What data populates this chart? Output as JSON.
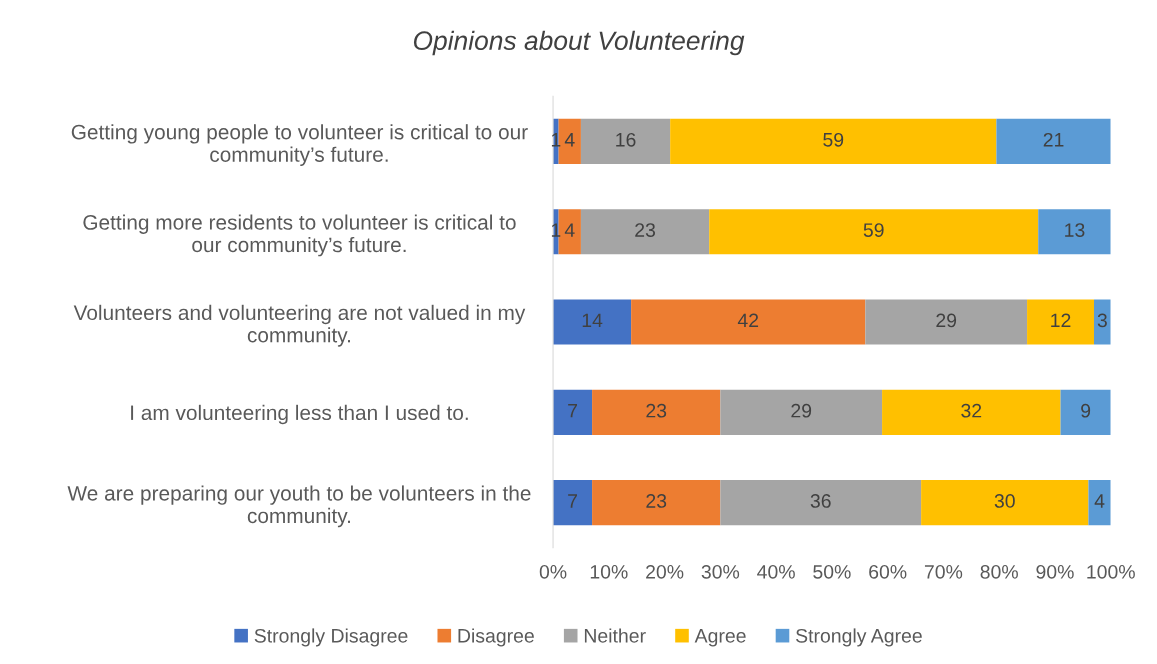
{
  "chart_data": {
    "type": "bar",
    "orientation": "horizontal",
    "stacked": true,
    "title": "Opinions about Volunteering",
    "categories": [
      "Getting young people to volunteer is critical to our community’s future.",
      "Getting more residents to volunteer is critical to our community’s future.",
      "Volunteers and volunteering are not valued in my community.",
      "I am volunteering less than I used to.",
      "We are preparing our youth to be volunteers in the community."
    ],
    "series": [
      {
        "name": "Strongly Disagree",
        "color": "#4472c4",
        "values": [
          1,
          1,
          14,
          7,
          7
        ],
        "value_labels": [
          "1",
          "1",
          "14",
          "7",
          "7"
        ]
      },
      {
        "name": "Disagree",
        "color": "#ed7d31",
        "values": [
          4,
          4,
          42,
          23,
          23
        ],
        "value_labels": [
          "4",
          "4",
          "42",
          "23",
          "23"
        ]
      },
      {
        "name": "Neither",
        "color": "#a5a5a5",
        "values": [
          16,
          23,
          29,
          29,
          36
        ],
        "value_labels": [
          "16",
          "23",
          "29",
          "29",
          "36"
        ]
      },
      {
        "name": "Agree",
        "color": "#ffc000",
        "values": [
          58.5,
          59,
          12,
          32,
          30
        ],
        "value_labels": [
          "59",
          "59",
          "12",
          "32",
          "30"
        ]
      },
      {
        "name": "Strongly Agree",
        "color": "#5b9bd5",
        "values": [
          20.5,
          13,
          3,
          9,
          4
        ],
        "value_labels": [
          "21",
          "13",
          "3",
          "9",
          "4"
        ]
      }
    ],
    "xlim": [
      0,
      100
    ],
    "xticks": [
      {
        "value": 0,
        "label": "0%"
      },
      {
        "value": 10,
        "label": "10%"
      },
      {
        "value": 20,
        "label": "20%"
      },
      {
        "value": 30,
        "label": "30%"
      },
      {
        "value": 40,
        "label": "40%"
      },
      {
        "value": 50,
        "label": "50%"
      },
      {
        "value": 60,
        "label": "60%"
      },
      {
        "value": 70,
        "label": "70%"
      },
      {
        "value": 80,
        "label": "80%"
      },
      {
        "value": 90,
        "label": "90%"
      },
      {
        "value": 100,
        "label": "100%"
      }
    ],
    "legend": "bottom",
    "grid": false
  }
}
